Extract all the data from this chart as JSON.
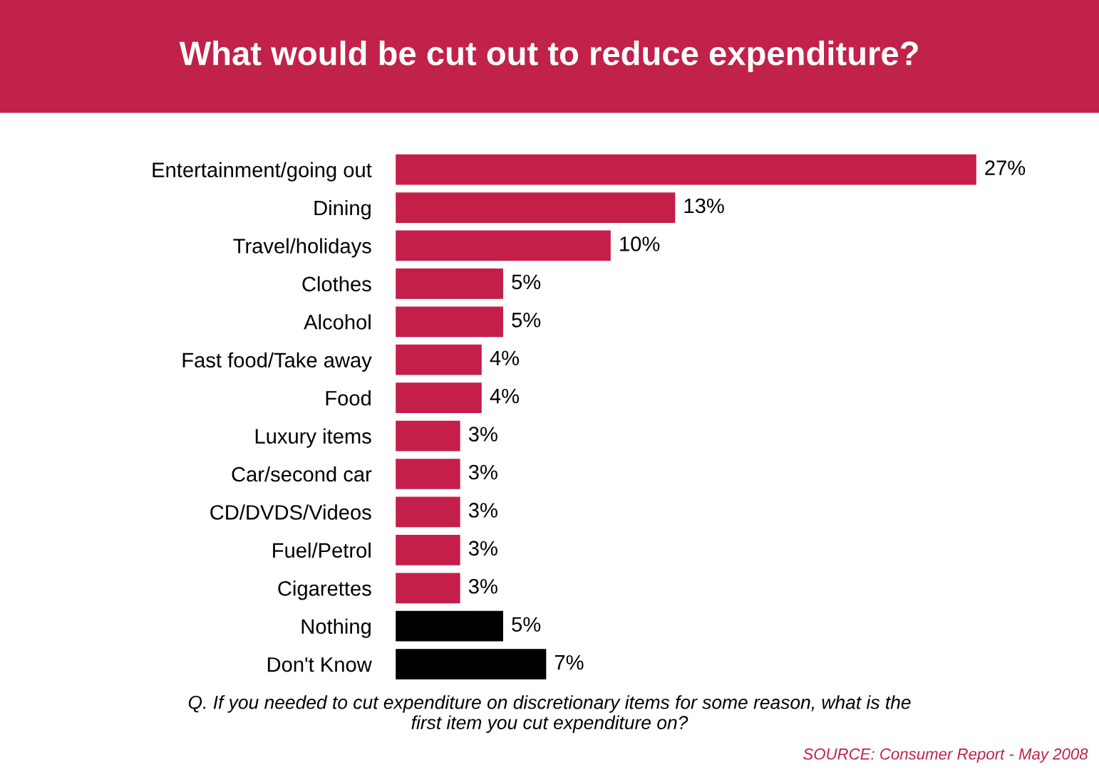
{
  "chart_data": {
    "type": "bar",
    "orientation": "horizontal",
    "title": "What would be cut out to reduce expenditure?",
    "categories": [
      "Entertainment/going out",
      "Dining",
      "Travel/holidays",
      "Clothes",
      "Alcohol",
      "Fast food/Take away",
      "Food",
      "Luxury items",
      "Car/second car",
      "CD/DVDS/Videos",
      "Fuel/Petrol",
      "Cigarettes",
      "Nothing",
      "Don't Know"
    ],
    "values": [
      27,
      13,
      10,
      5,
      5,
      4,
      4,
      3,
      3,
      3,
      3,
      3,
      5,
      7
    ],
    "colors": [
      "#c41e4a",
      "#c41e4a",
      "#c41e4a",
      "#c41e4a",
      "#c41e4a",
      "#c41e4a",
      "#c41e4a",
      "#c41e4a",
      "#c41e4a",
      "#c41e4a",
      "#c41e4a",
      "#c41e4a",
      "#000000",
      "#000000"
    ],
    "value_labels": [
      "27%",
      "13%",
      "10%",
      "5%",
      "5%",
      "4%",
      "4%",
      "3%",
      "3%",
      "3%",
      "3%",
      "3%",
      "5%",
      "7%"
    ],
    "annotations": [
      "Q. If you needed to cut expenditure on discretionary items for some reason, what is the\nfirst item you cut expenditure on?",
      "SOURCE: Consumer Report - May 2008"
    ]
  }
}
